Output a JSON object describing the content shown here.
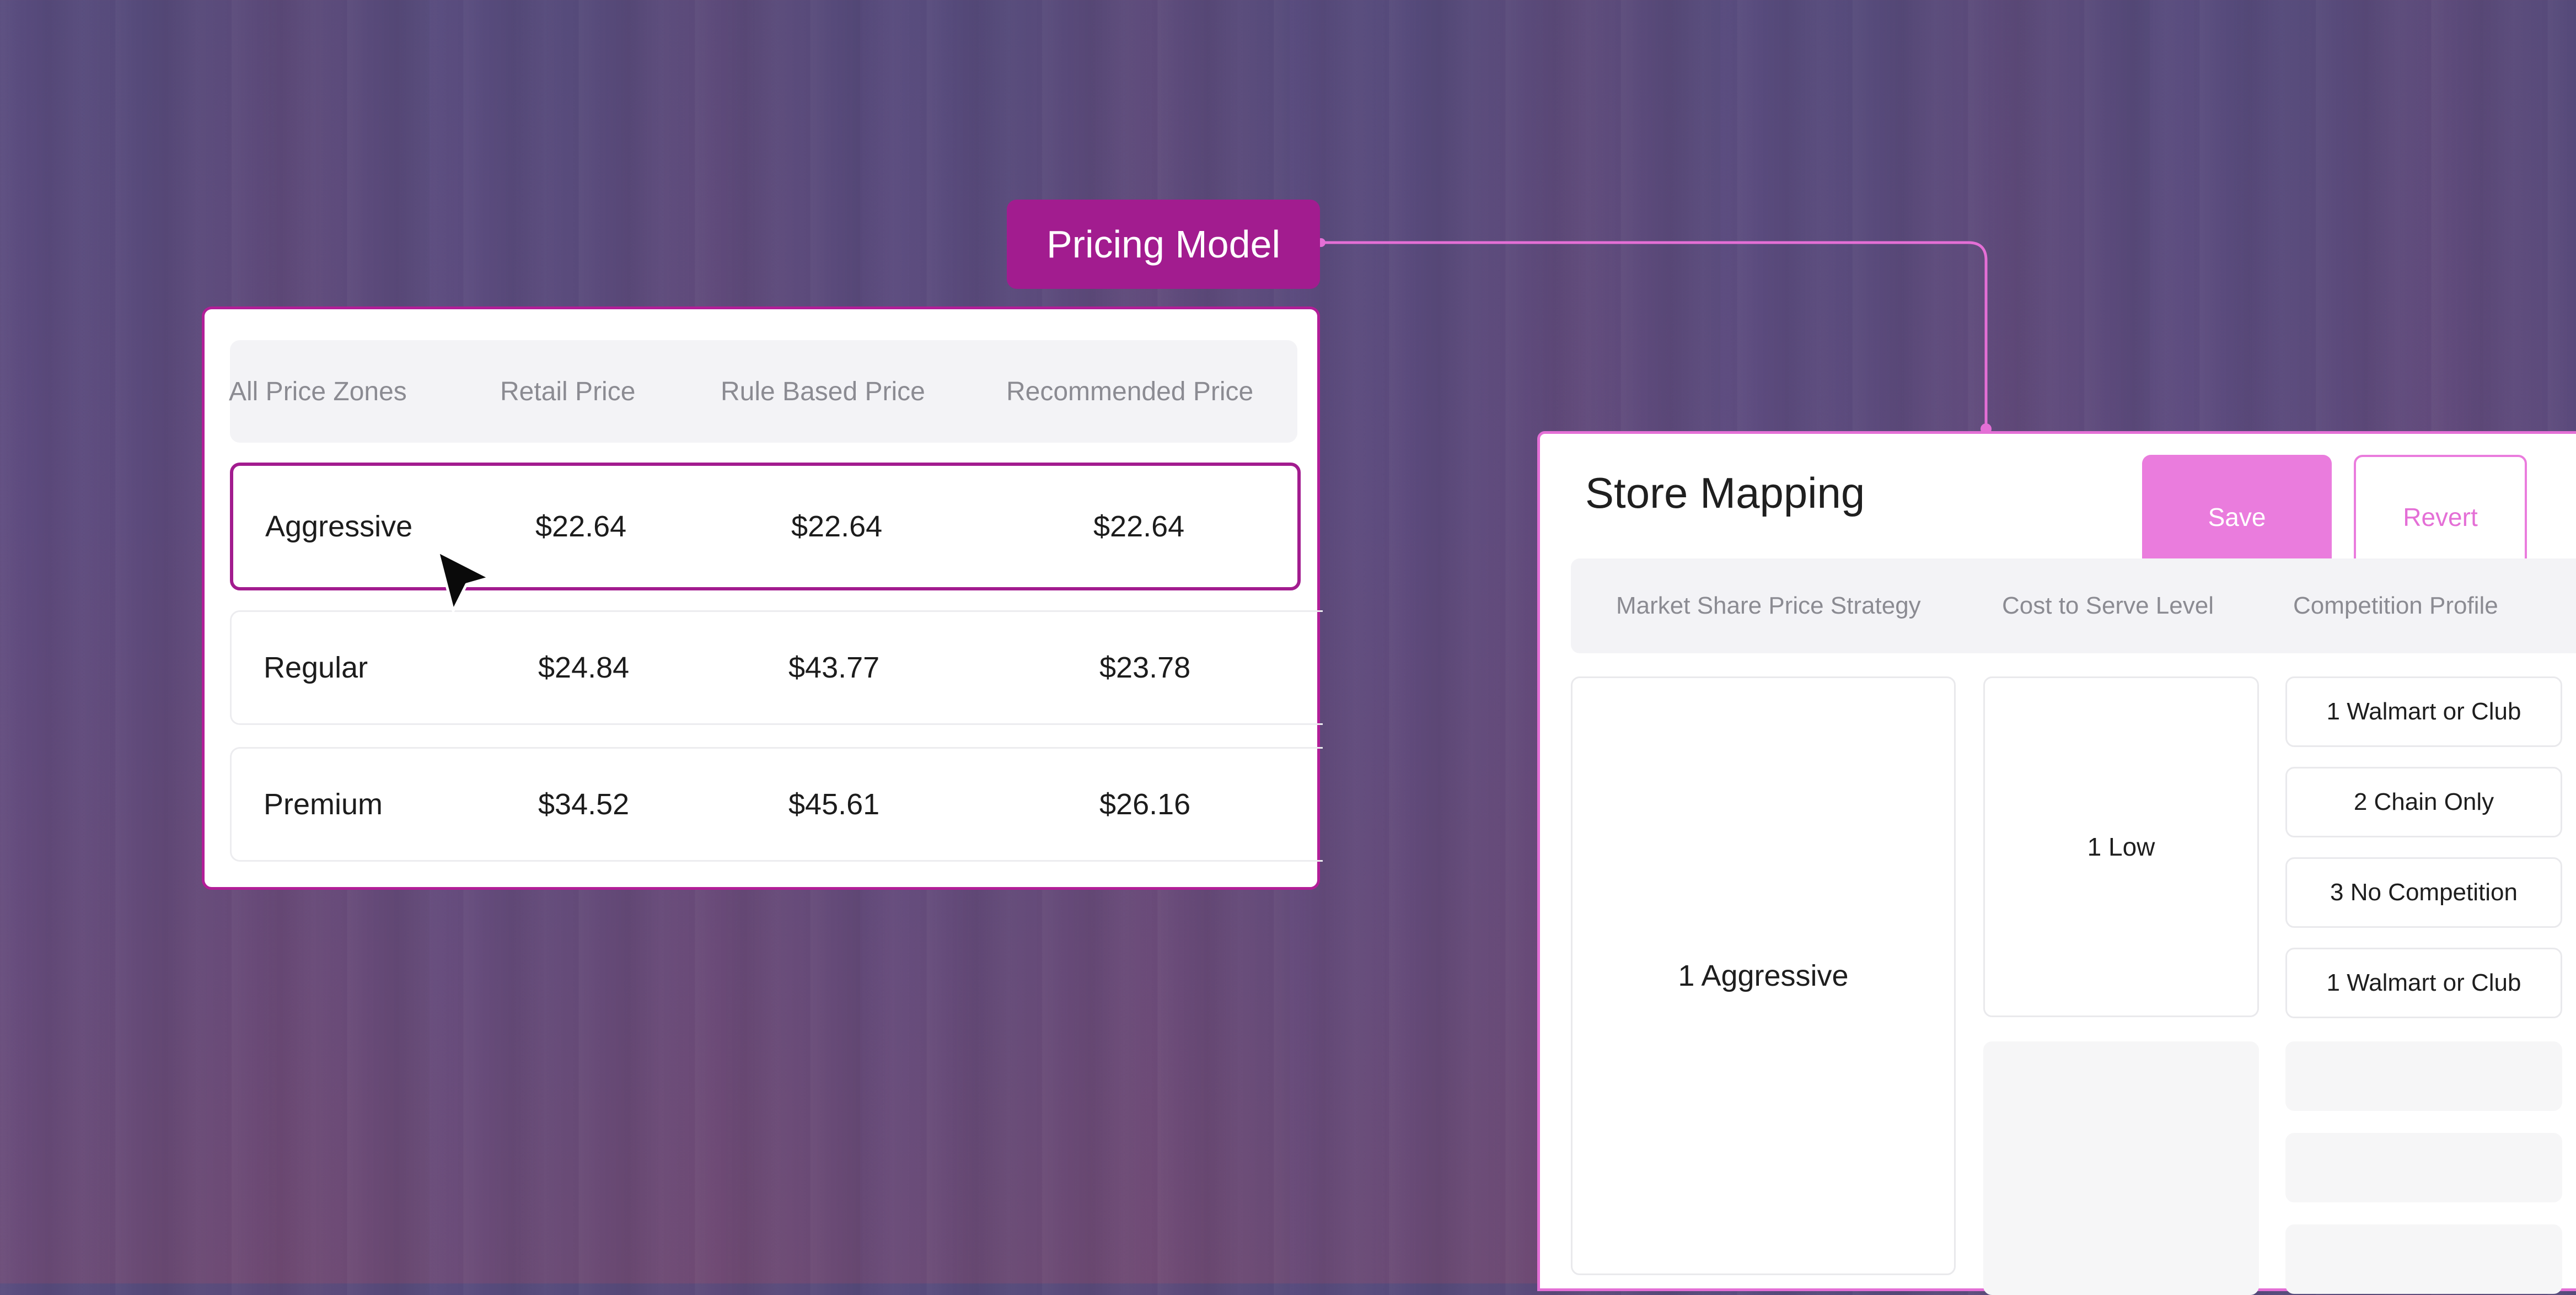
{
  "badge": {
    "label": "Pricing Model"
  },
  "price_table": {
    "columns": [
      "All Price Zones",
      "Retail Price",
      "Rule Based Price",
      "Recommended Price"
    ],
    "rows": [
      {
        "zone": "Aggressive",
        "retail": "$22.64",
        "rule_based": "$22.64",
        "recommended": "$22.64",
        "selected": true
      },
      {
        "zone": "Regular",
        "retail": "$24.84",
        "rule_based": "$43.77",
        "recommended": "$23.78",
        "selected": false
      },
      {
        "zone": "Premium",
        "retail": "$34.52",
        "rule_based": "$45.61",
        "recommended": "$26.16",
        "selected": false
      }
    ]
  },
  "store_mapping": {
    "title": "Store Mapping",
    "save_label": "Save",
    "revert_label": "Revert",
    "columns": [
      "Market Share Price Strategy",
      "Cost to Serve Level",
      "Competition Profile"
    ],
    "strategy": "1 Aggressive",
    "cost_level": "1 Low",
    "competition": [
      "1 Walmart or Club",
      "2 Chain Only",
      "3 No Competition",
      "1 Walmart or Club"
    ]
  },
  "colors": {
    "accent": "#a21c8f",
    "accent_light": "#ea7cdd",
    "connector": "#e46fd6"
  }
}
